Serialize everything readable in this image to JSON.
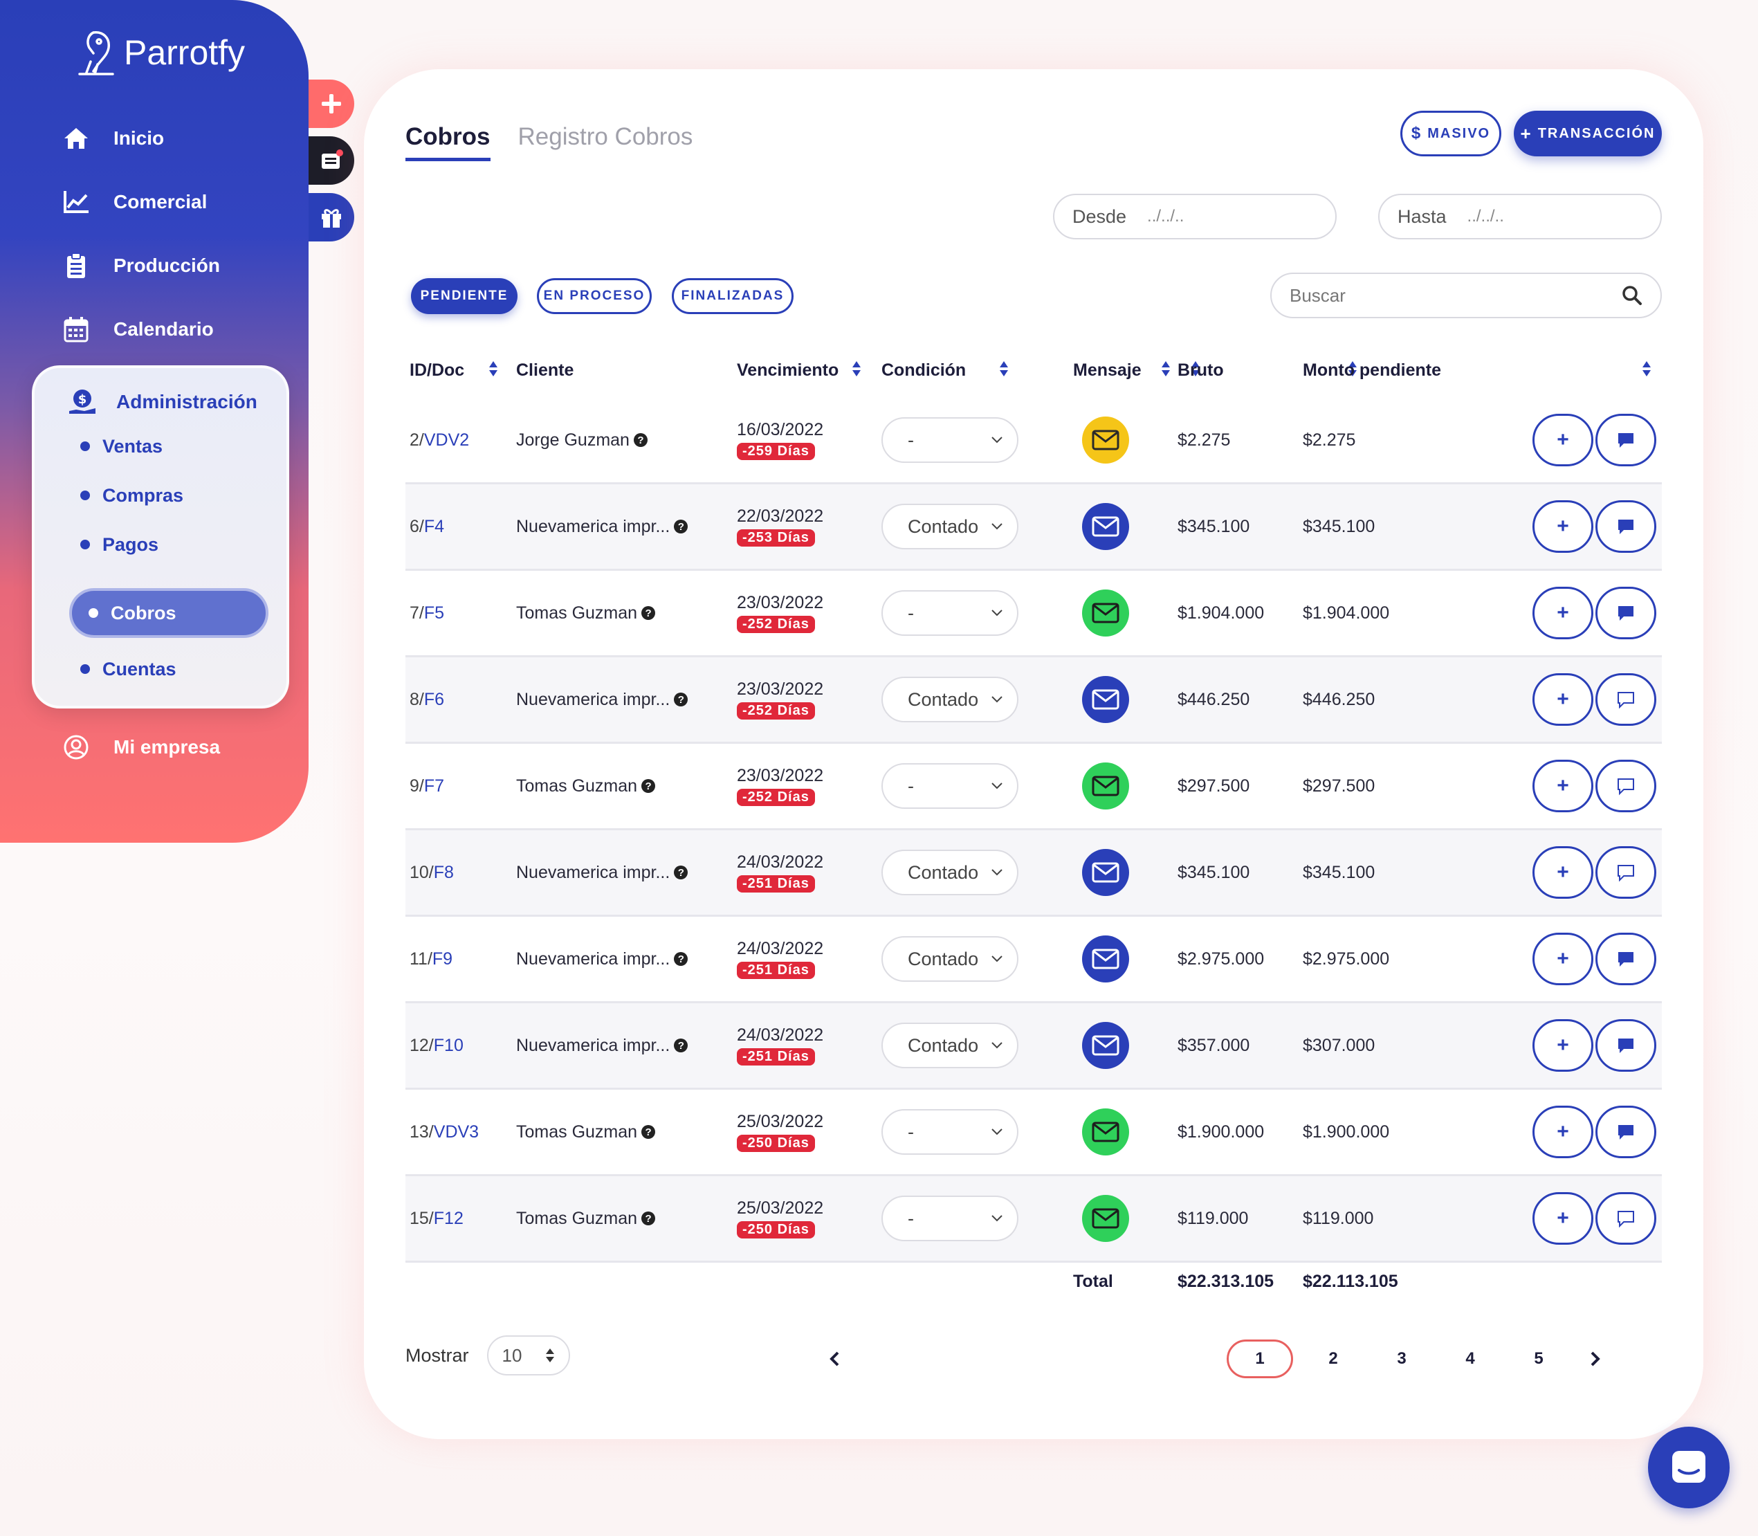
{
  "brand": {
    "name": "Parrotfy"
  },
  "sidebar": {
    "items": [
      {
        "label": "Inicio",
        "icon": "home-icon"
      },
      {
        "label": "Comercial",
        "icon": "chart-line-icon"
      },
      {
        "label": "Producción",
        "icon": "clipboard-icon"
      },
      {
        "label": "Calendario",
        "icon": "calendar-icon"
      }
    ],
    "admin": {
      "label": "Administración",
      "icon": "money-hand-icon",
      "sub_items": [
        "Ventas",
        "Compras",
        "Pagos",
        "Cobros",
        "Cuentas"
      ],
      "active": "Cobros"
    },
    "bottom_item": {
      "label": "Mi empresa",
      "icon": "user-circle-icon"
    }
  },
  "side_tabs": [
    {
      "icon": "plus-icon",
      "color": "#ff6b6b"
    },
    {
      "icon": "news-notification-icon",
      "color": "#1d1d28"
    },
    {
      "icon": "gift-icon",
      "color": "#2a3fb8"
    }
  ],
  "page": {
    "tabs": [
      "Cobros",
      "Registro Cobros"
    ],
    "active_tab": "Cobros",
    "buttons": {
      "masivo": "MASIVO",
      "transaccion": "TRANSACCIÓN"
    },
    "dates": {
      "desde_label": "Desde",
      "desde_placeholder": "../../..",
      "hasta_label": "Hasta",
      "hasta_placeholder": "../../.."
    },
    "status_filters": [
      "PENDIENTE",
      "EN PROCESO",
      "FINALIZADAS"
    ],
    "active_filter": "PENDIENTE",
    "search_placeholder": "Buscar"
  },
  "table": {
    "headers": [
      "ID/Doc",
      "Cliente",
      "Vencimiento",
      "Condición",
      "Mensaje",
      "Bruto",
      "Monto pendiente"
    ],
    "rows": [
      {
        "id": "2/",
        "doc": "VDV2",
        "cliente": "Jorge Guzman",
        "fecha": "16/03/2022",
        "dias": "-259 Días",
        "condicion": "-",
        "mail": "yellow",
        "bruto": "$2.275",
        "pendiente": "$2.275",
        "chat_filled": true
      },
      {
        "id": "6/",
        "doc": "F4",
        "cliente": "Nuevamerica impr...",
        "fecha": "22/03/2022",
        "dias": "-253 Días",
        "condicion": "Contado",
        "mail": "blue",
        "bruto": "$345.100",
        "pendiente": "$345.100",
        "chat_filled": true
      },
      {
        "id": "7/",
        "doc": "F5",
        "cliente": "Tomas Guzman",
        "fecha": "23/03/2022",
        "dias": "-252 Días",
        "condicion": "-",
        "mail": "green",
        "bruto": "$1.904.000",
        "pendiente": "$1.904.000",
        "chat_filled": true
      },
      {
        "id": "8/",
        "doc": "F6",
        "cliente": "Nuevamerica impr...",
        "fecha": "23/03/2022",
        "dias": "-252 Días",
        "condicion": "Contado",
        "mail": "blue",
        "bruto": "$446.250",
        "pendiente": "$446.250",
        "chat_filled": false
      },
      {
        "id": "9/",
        "doc": "F7",
        "cliente": "Tomas Guzman",
        "fecha": "23/03/2022",
        "dias": "-252 Días",
        "condicion": "-",
        "mail": "green",
        "bruto": "$297.500",
        "pendiente": "$297.500",
        "chat_filled": false
      },
      {
        "id": "10/",
        "doc": "F8",
        "cliente": "Nuevamerica impr...",
        "fecha": "24/03/2022",
        "dias": "-251 Días",
        "condicion": "Contado",
        "mail": "blue",
        "bruto": "$345.100",
        "pendiente": "$345.100",
        "chat_filled": false
      },
      {
        "id": "11/",
        "doc": "F9",
        "cliente": "Nuevamerica impr...",
        "fecha": "24/03/2022",
        "dias": "-251 Días",
        "condicion": "Contado",
        "mail": "blue",
        "bruto": "$2.975.000",
        "pendiente": "$2.975.000",
        "chat_filled": true
      },
      {
        "id": "12/",
        "doc": "F10",
        "cliente": "Nuevamerica impr...",
        "fecha": "24/03/2022",
        "dias": "-251 Días",
        "condicion": "Contado",
        "mail": "blue",
        "bruto": "$357.000",
        "pendiente": "$307.000",
        "chat_filled": true
      },
      {
        "id": "13/",
        "doc": "VDV3",
        "cliente": "Tomas Guzman",
        "fecha": "25/03/2022",
        "dias": "-250 Días",
        "condicion": "-",
        "mail": "green",
        "bruto": "$1.900.000",
        "pendiente": "$1.900.000",
        "chat_filled": true
      },
      {
        "id": "15/",
        "doc": "F12",
        "cliente": "Tomas Guzman",
        "fecha": "25/03/2022",
        "dias": "-250 Días",
        "condicion": "-",
        "mail": "green",
        "bruto": "$119.000",
        "pendiente": "$119.000",
        "chat_filled": false
      }
    ],
    "totals": {
      "label": "Total",
      "bruto": "$22.313.105",
      "pendiente": "$22.113.105"
    }
  },
  "footer": {
    "mostrar_label": "Mostrar",
    "mostrar_value": "10",
    "pages": [
      "1",
      "2",
      "3",
      "4",
      "5"
    ],
    "current_page": "1"
  },
  "colors": {
    "primary": "#2a3fb8",
    "accent": "#ff6b6b",
    "danger_badge": "#e0283a",
    "mail_yellow": "#f5c518",
    "mail_blue": "#2a3fb8",
    "mail_green": "#2fd05a"
  }
}
